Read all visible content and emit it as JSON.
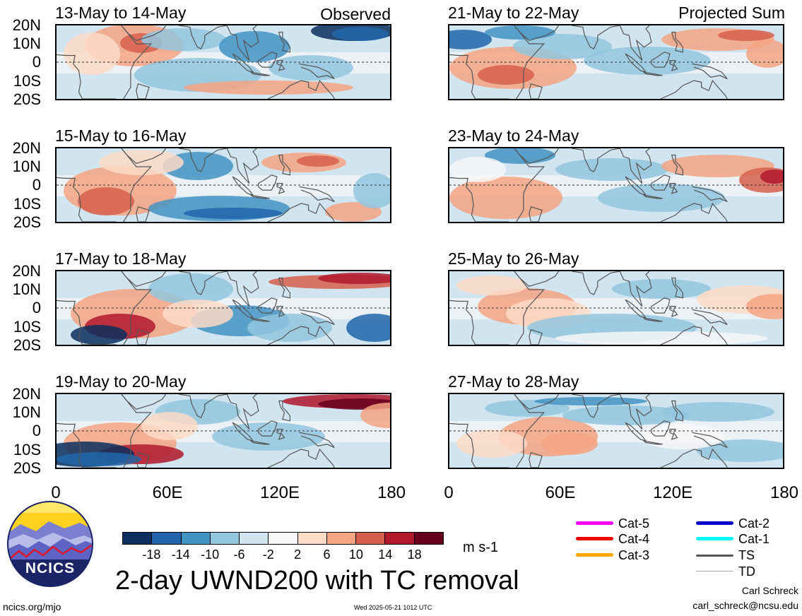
{
  "panels_left": [
    {
      "title": "13-May to 14-May",
      "corner": "Observed"
    },
    {
      "title": "15-May to 16-May",
      "corner": ""
    },
    {
      "title": "17-May to 18-May",
      "corner": ""
    },
    {
      "title": "19-May to 20-May",
      "corner": ""
    }
  ],
  "panels_right": [
    {
      "title": "21-May to 22-May",
      "corner": "Projected Sum"
    },
    {
      "title": "23-May to 24-May",
      "corner": ""
    },
    {
      "title": "25-May to 26-May",
      "corner": ""
    },
    {
      "title": "27-May to 28-May",
      "corner": ""
    }
  ],
  "lat_labels": [
    "20N",
    "10N",
    "0",
    "10S",
    "20S"
  ],
  "lon_labels": [
    "0",
    "60E",
    "120E",
    "180"
  ],
  "colorbar": {
    "colors": [
      "#0b2f5e",
      "#2166ac",
      "#4393c3",
      "#92c5de",
      "#d1e5f0",
      "#f7f7f7",
      "#fddbc7",
      "#f4a582",
      "#d6604d",
      "#b2182b",
      "#67001f"
    ],
    "ticks": [
      "-18",
      "-14",
      "-10",
      "-6",
      "-2",
      "2",
      "6",
      "10",
      "14",
      "18"
    ],
    "units": "m s-1"
  },
  "legend": [
    {
      "label": "Cat-5",
      "color": "#ff00ff"
    },
    {
      "label": "Cat-4",
      "color": "#ee0000"
    },
    {
      "label": "Cat-3",
      "color": "#ffa500"
    },
    {
      "label": "Cat-2",
      "color": "#0000cc"
    },
    {
      "label": "Cat-1",
      "color": "#00ffff"
    },
    {
      "label": "TS",
      "color": "#555555"
    },
    {
      "label": "TD",
      "color": "#aaaaaa"
    }
  ],
  "main_title": "2-day UWND200 with TC removal",
  "logo_text": "NCICS",
  "footer": {
    "site": "ncics.org/mjo",
    "timestamp": "Wed 2025-05-21 1012 UTC",
    "author": "Carl Schreck",
    "email": "carl_schreck@ncsu.edu"
  }
}
